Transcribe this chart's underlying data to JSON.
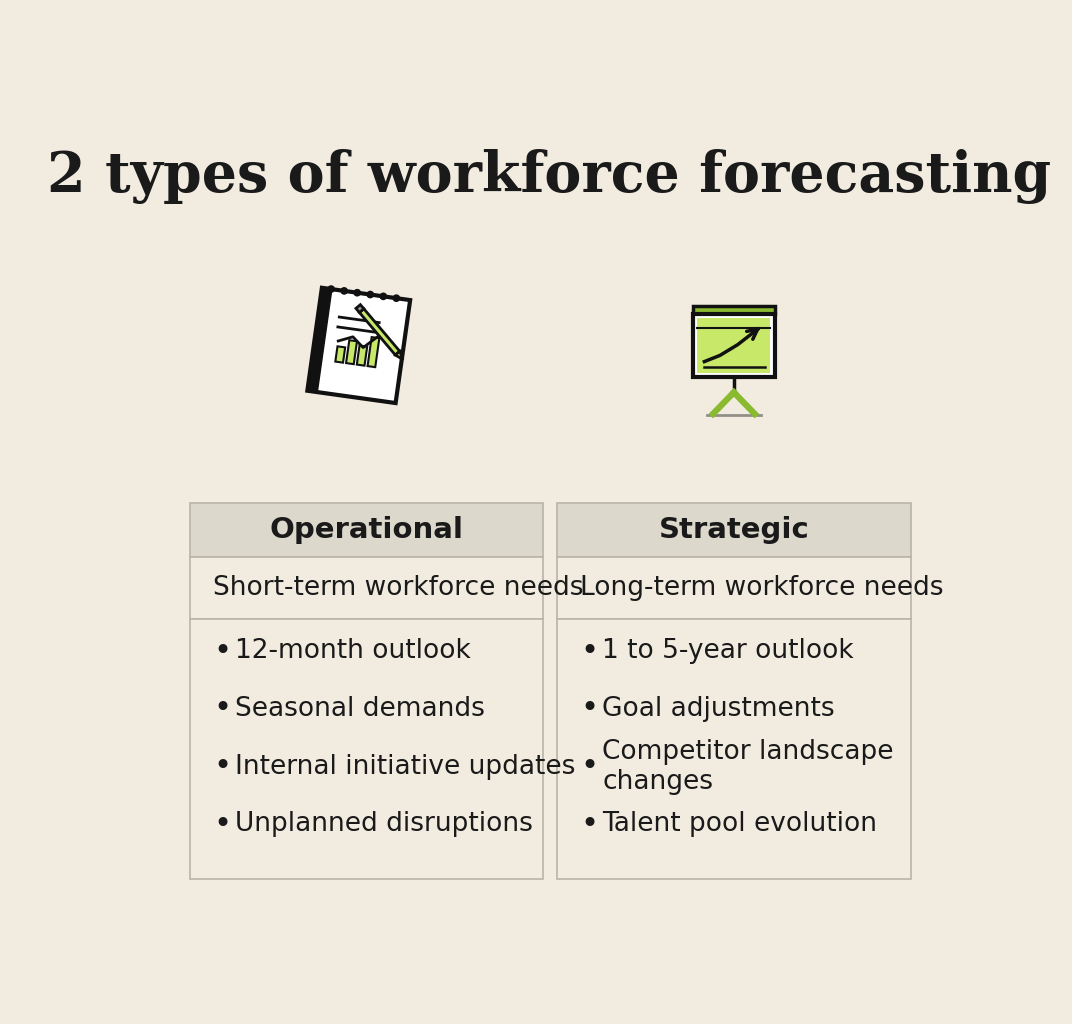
{
  "title": "2 types of workforce forecasting",
  "background_color": "#f2ece0",
  "header_bg_color": "#ddd8cc",
  "cell_bg_color": "#f2ece0",
  "border_color": "#b8b4a8",
  "text_color": "#1a1a1a",
  "title_fontsize": 40,
  "header_fontsize": 21,
  "body_fontsize": 19,
  "col1_header": "Operational",
  "col2_header": "Strategic",
  "col1_subheader": "Short-term workforce needs",
  "col2_subheader": "Long-term workforce needs",
  "col1_bullets": [
    "12-month outlook",
    "Seasonal demands",
    "Internal initiative updates",
    "Unplanned disruptions"
  ],
  "col2_bullets": [
    "1 to 5-year outlook",
    "Goal adjustments",
    "Competitor landscape\nchanges",
    "Talent pool evolution"
  ],
  "accent_color": "#c8e86a",
  "dark_color": "#1a1a1a"
}
